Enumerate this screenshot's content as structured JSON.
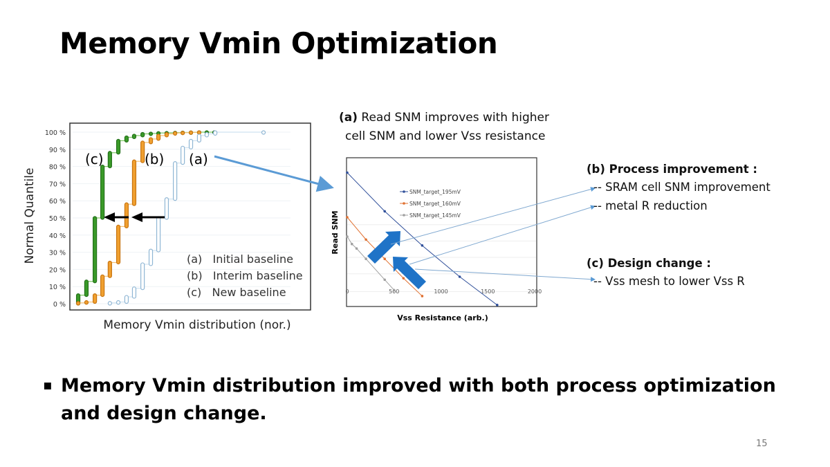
{
  "title": "Memory Vmin Optimization",
  "left_chart_caption": {
    "ylabel": "Normal Quantile",
    "xlabel": "Memory Vmin distribution (nor.)"
  },
  "right_heading": {
    "line1_bold": "(a)",
    "line1_rest": " Read SNM improves with higher",
    "line2": "cell SNM and lower Vss resistance"
  },
  "right_notes": {
    "b_title": "(b) Process improvement :",
    "b_items": [
      "-- SRAM cell SNM improvement",
      "-- metal R reduction"
    ],
    "c_title": "(c) Design change :",
    "c_items": [
      "-- Vss mesh to lower Vss R"
    ]
  },
  "bullet": {
    "marker": "▪",
    "line1": "Memory Vmin distribution improved with both process optimization",
    "line2": "and design change."
  },
  "page_number": "15",
  "colors": {
    "green": "#3a9a28",
    "orange": "#f0a030",
    "lightblue": "#8fb6d4",
    "accent_blue": "#1f73c7",
    "navy": "#2f4f9a",
    "rust": "#e07030",
    "gray": "#a0a0a0"
  },
  "chart_data": [
    {
      "type": "line",
      "title": "",
      "xlabel": "Memory Vmin distribution (nor.)",
      "ylabel": "Normal Quantile",
      "ylim": [
        0,
        100
      ],
      "xlim": [
        0,
        100
      ],
      "yticks": [
        "0 %",
        "10 %",
        "20 %",
        "30 %",
        "40 %",
        "50 %",
        "60 %",
        "70 %",
        "80 %",
        "90 %",
        "100 %"
      ],
      "grid": true,
      "annotations": [
        "(c)",
        "(b)",
        "(a)"
      ],
      "legend": [
        "(a)   Initial baseline",
        "(b)   Interim baseline",
        "(c)   New baseline"
      ],
      "series": [
        {
          "name": "(c) New baseline",
          "color": "#3a9a28",
          "x": [
            4.5,
            8.6,
            12.8,
            16.6,
            20.3,
            24.5,
            28.6,
            32.4,
            36.6,
            40.7,
            44.5,
            48.6,
            52.8,
            56.6,
            60.7,
            64.8,
            68.6,
            72.4
          ],
          "y": [
            5,
            13,
            50,
            80,
            88,
            95,
            97,
            98,
            99,
            99.2,
            99.5,
            99.6,
            99.7,
            99.8,
            99.9,
            100,
            100,
            100
          ]
        },
        {
          "name": "(b) Interim baseline",
          "color": "#f0a030",
          "x": [
            4.5,
            8.6,
            12.8,
            16.6,
            20.3,
            24.5,
            28.6,
            32.4,
            36.6,
            40.7,
            44.5,
            48.6,
            52.8,
            56.6,
            60.7,
            64.8
          ],
          "y": [
            0.5,
            1,
            5,
            16,
            24,
            45,
            58,
            83,
            94,
            96,
            98,
            99,
            99.5,
            99.7,
            99.9,
            100
          ]
        },
        {
          "name": "(a) Initial baseline",
          "color": "#8fb6d4",
          "x": [
            20.3,
            24.5,
            28.6,
            32.4,
            36.6,
            40.7,
            44.5,
            48.6,
            52.8,
            56.6,
            60.7,
            64.8,
            68.6,
            72.8,
            96.9
          ],
          "y": [
            0.5,
            1,
            4,
            9,
            23,
            31,
            50,
            61,
            82,
            91,
            95,
            98,
            99,
            100,
            100
          ]
        }
      ]
    },
    {
      "type": "line",
      "title": "",
      "xlabel": "Vss Resistance (arb.)",
      "ylabel": "Read SNM",
      "xlim": [
        0,
        2000
      ],
      "ylim": [
        0,
        100
      ],
      "xticks": [
        "0",
        "500",
        "1000",
        "1500",
        "2000"
      ],
      "legend_position": "top-center",
      "series": [
        {
          "name": "SNM_target_195mV",
          "color": "#2f4f9a",
          "x": [
            0,
            400,
            800,
            1200,
            1600
          ],
          "y": [
            90,
            64,
            41,
            20,
            1
          ]
        },
        {
          "name": "SNM_target_160mV",
          "color": "#e07030",
          "x": [
            0,
            200,
            400,
            600,
            800
          ],
          "y": [
            60,
            45,
            32,
            19,
            7
          ]
        },
        {
          "name": "SNM_target_145mV",
          "color": "#a0a0a0",
          "x": [
            0,
            50,
            100,
            200,
            400,
            500
          ],
          "y": [
            47,
            42,
            39,
            32,
            18,
            11
          ]
        }
      ]
    }
  ]
}
